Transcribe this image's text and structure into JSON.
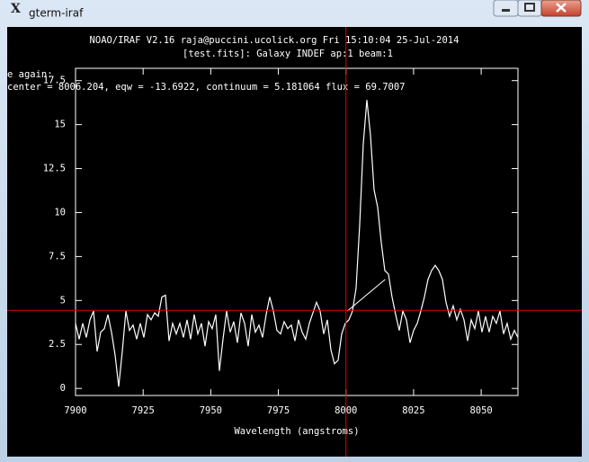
{
  "window": {
    "title": "gterm-iraf"
  },
  "chart_data": {
    "type": "line",
    "title": "NOAO/IRAF V2.16 raja@puccini.ucolick.org Fri 15:10:04 25-Jul-2014",
    "subtitle": "[test.fits]: Galaxy INDEF ap:1 beam:1",
    "annotations": [
      "e again:",
      "center =  8006.204, eqw =  -13.6922, continuum =  5.181064 flux =   69.7007"
    ],
    "x_label": "Wavelength (angstroms)",
    "x": [
      7900,
      7901.33,
      7902.66,
      7903.99,
      7905.32,
      7906.65,
      7907.98,
      7909.31,
      7910.64,
      7911.97,
      7913.3,
      7914.63,
      7915.96,
      7917.29,
      7918.62,
      7919.95,
      7921.28,
      7922.61,
      7923.94,
      7925.27,
      7926.6,
      7927.93,
      7929.26,
      7930.59,
      7931.92,
      7933.25,
      7934.58,
      7935.91,
      7937.24,
      7938.57,
      7939.9,
      7941.23,
      7942.56,
      7943.89,
      7945.22,
      7946.55,
      7947.88,
      7949.21,
      7950.54,
      7951.87,
      7953.2,
      7954.53,
      7955.86,
      7957.19,
      7958.52,
      7959.85,
      7961.18,
      7962.51,
      7963.84,
      7965.17,
      7966.5,
      7967.83,
      7969.16,
      7970.49,
      7971.82,
      7973.15,
      7974.48,
      7975.81,
      7977.14,
      7978.47,
      7979.8,
      7981.13,
      7982.46,
      7983.79,
      7985.12,
      7986.45,
      7987.78,
      7989.11,
      7990.44,
      7991.77,
      7993.1,
      7994.43,
      7995.76,
      7997.09,
      7998.42,
      7999.75,
      8001.08,
      8002.41,
      8003.74,
      8005.07,
      8006.4,
      8007.73,
      8009.06,
      8010.39,
      8011.72,
      8013.05,
      8014.38,
      8015.71,
      8017.04,
      8018.37,
      8019.7,
      8021.03,
      8022.36,
      8023.69,
      8025.02,
      8026.35,
      8027.68,
      8029.01,
      8030.34,
      8031.67,
      8033,
      8034.33,
      8035.66,
      8036.99,
      8038.32,
      8039.65,
      8040.98,
      8042.31,
      8043.64,
      8044.97,
      8046.3,
      8047.63,
      8048.96,
      8050.29,
      8051.62,
      8052.95,
      8054.28,
      8055.61,
      8056.94,
      8058.27,
      8059.6,
      8060.93,
      8062.26,
      8063.59
    ],
    "series": [
      {
        "color": "#ffffff",
        "values": [
          3.7,
          2.8,
          3.7,
          2.9,
          3.9,
          4.4,
          2.1,
          3.2,
          3.4,
          4.2,
          3.2,
          1.9,
          0.1,
          2.1,
          4.4,
          3.3,
          3.6,
          2.8,
          3.7,
          2.9,
          4.2,
          3.9,
          4.3,
          4.1,
          5.2,
          5.3,
          2.7,
          3.7,
          3.1,
          3.7,
          2.9,
          3.9,
          2.8,
          4.2,
          3.1,
          3.7,
          2.4,
          3.8,
          3.4,
          4.2,
          1.0,
          2.8,
          4.4,
          3.2,
          3.8,
          2.6,
          4.3,
          3.7,
          2.4,
          4.2,
          3.2,
          3.6,
          2.9,
          4.2,
          5.2,
          4.4,
          3.3,
          3.1,
          3.8,
          3.4,
          3.6,
          2.7,
          3.9,
          3.2,
          2.8,
          3.7,
          4.3,
          4.9,
          4.4,
          3.1,
          3.9,
          2.2,
          1.4,
          1.6,
          3.1,
          3.7,
          3.9,
          4.4,
          5.7,
          9.3,
          13.9,
          16.4,
          14.4,
          11.3,
          10.3,
          8.3,
          6.7,
          6.5,
          5.2,
          4.2,
          3.3,
          4.4,
          3.9,
          2.6,
          3.3,
          3.7,
          4.4,
          5.2,
          6.2,
          6.7,
          7.0,
          6.7,
          6.2,
          4.9,
          4.1,
          4.7,
          3.9,
          4.5,
          3.9,
          2.7,
          3.9,
          3.4,
          4.4,
          3.2,
          4.1,
          3.2,
          4.1,
          3.7,
          4.4,
          3.1,
          3.7,
          2.8,
          3.3,
          2.9
        ]
      }
    ],
    "continuum_line": {
      "x": [
        8000.5,
        8014.5
      ],
      "y": [
        4.4,
        6.2
      ],
      "color": "#ffffff"
    },
    "cursor": {
      "x": 8000,
      "y": 4.44,
      "color": "#e00000"
    },
    "xlim": [
      7900,
      8063.6
    ],
    "ylim": [
      -0.4,
      18.2
    ],
    "xticks": [
      7900,
      7925,
      7950,
      7975,
      8000,
      8025,
      8050
    ],
    "yticks": [
      0,
      2.5,
      5,
      7.5,
      10,
      12.5,
      15,
      17.5
    ]
  }
}
